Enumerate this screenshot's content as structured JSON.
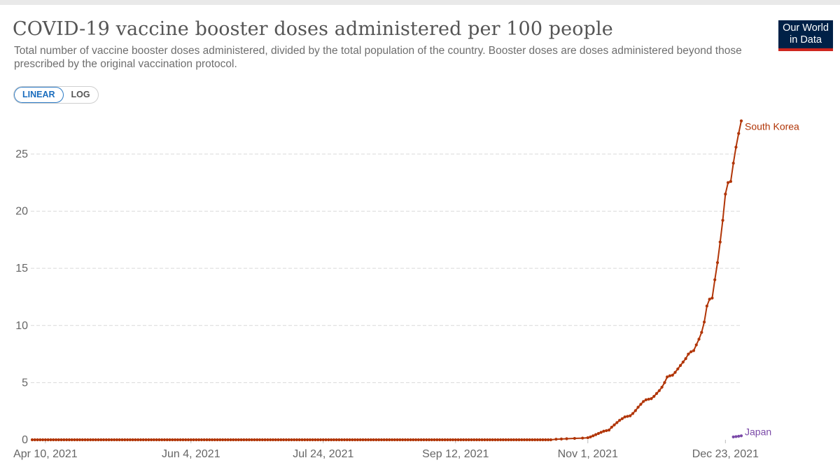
{
  "title": "COVID-19 vaccine booster doses administered per 100 people",
  "subtitle": "Total number of vaccine booster doses administered, divided by the total population of the country. Booster doses are doses administered beyond those prescribed by the original vaccination protocol.",
  "logo": {
    "line1": "Our World",
    "line2": "in Data",
    "bg_color": "#002147",
    "accent_color": "#ce261e"
  },
  "scale_toggle": {
    "linear_label": "LINEAR",
    "log_label": "LOG",
    "selected": "LINEAR"
  },
  "chart_data": {
    "type": "line",
    "title": "COVID-19 vaccine booster doses administered per 100 people",
    "xlabel": "",
    "ylabel": "",
    "ylim": [
      0,
      28
    ],
    "yticks": [
      0,
      5,
      10,
      15,
      20,
      25
    ],
    "grid": true,
    "x_start": "2021-04-05",
    "x_end": "2022-01-01",
    "xtick_labels": [
      {
        "day": 5,
        "label": "Apr 10, 2021"
      },
      {
        "day": 60,
        "label": "Jun 4, 2021"
      },
      {
        "day": 110,
        "label": "Jul 24, 2021"
      },
      {
        "day": 160,
        "label": "Sep 12, 2021"
      },
      {
        "day": 210,
        "label": "Nov 1, 2021"
      },
      {
        "day": 262,
        "label": "Dec 23, 2021"
      }
    ],
    "series": [
      {
        "name": "South Korea",
        "color": "#b13507",
        "zero_until_day": 196,
        "points": [
          [
            196,
            0.0
          ],
          [
            198,
            0.05
          ],
          [
            200,
            0.07
          ],
          [
            202,
            0.09
          ],
          [
            205,
            0.12
          ],
          [
            208,
            0.15
          ],
          [
            210,
            0.18
          ],
          [
            211,
            0.25
          ],
          [
            212,
            0.35
          ],
          [
            213,
            0.45
          ],
          [
            214,
            0.55
          ],
          [
            215,
            0.65
          ],
          [
            216,
            0.75
          ],
          [
            217,
            0.8
          ],
          [
            218,
            0.85
          ],
          [
            219,
            1.1
          ],
          [
            220,
            1.3
          ],
          [
            221,
            1.5
          ],
          [
            222,
            1.7
          ],
          [
            223,
            1.85
          ],
          [
            224,
            2.0
          ],
          [
            225,
            2.05
          ],
          [
            226,
            2.1
          ],
          [
            227,
            2.3
          ],
          [
            228,
            2.55
          ],
          [
            229,
            2.85
          ],
          [
            230,
            3.1
          ],
          [
            231,
            3.35
          ],
          [
            232,
            3.5
          ],
          [
            233,
            3.55
          ],
          [
            234,
            3.6
          ],
          [
            235,
            3.8
          ],
          [
            236,
            4.05
          ],
          [
            237,
            4.3
          ],
          [
            238,
            4.6
          ],
          [
            239,
            5.0
          ],
          [
            240,
            5.5
          ],
          [
            241,
            5.6
          ],
          [
            242,
            5.65
          ],
          [
            243,
            5.9
          ],
          [
            244,
            6.2
          ],
          [
            245,
            6.5
          ],
          [
            246,
            6.8
          ],
          [
            247,
            7.1
          ],
          [
            248,
            7.5
          ],
          [
            249,
            7.7
          ],
          [
            250,
            7.8
          ],
          [
            251,
            8.3
          ],
          [
            252,
            8.8
          ],
          [
            253,
            9.4
          ],
          [
            254,
            10.3
          ],
          [
            255,
            11.7
          ],
          [
            256,
            12.3
          ],
          [
            257,
            12.4
          ],
          [
            258,
            14.0
          ],
          [
            259,
            15.5
          ],
          [
            260,
            17.3
          ],
          [
            261,
            19.2
          ],
          [
            262,
            21.5
          ],
          [
            263,
            22.5
          ],
          [
            264,
            22.6
          ],
          [
            265,
            24.2
          ],
          [
            266,
            25.6
          ],
          [
            267,
            26.8
          ],
          [
            268,
            27.9
          ]
        ]
      },
      {
        "name": "Japan",
        "color": "#7b4aa8",
        "points": [
          [
            265,
            0.25
          ],
          [
            266,
            0.28
          ],
          [
            267,
            0.31
          ],
          [
            268,
            0.35
          ]
        ]
      }
    ]
  }
}
